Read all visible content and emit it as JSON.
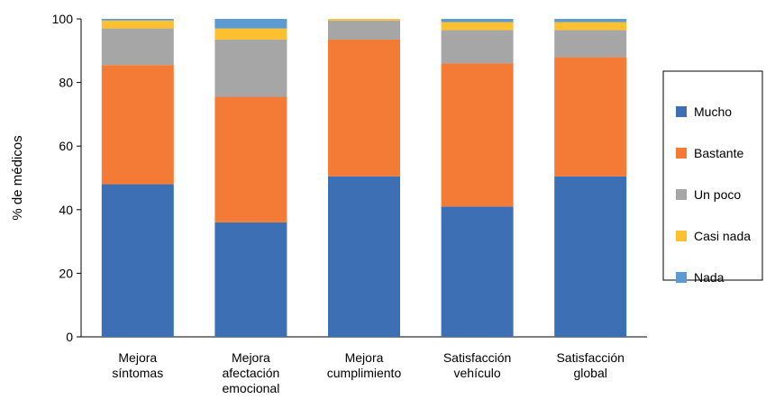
{
  "chart_data": {
    "type": "bar",
    "stacked": true,
    "ylabel": "% de médicos",
    "ylim": [
      0,
      100
    ],
    "yticks": [
      0,
      20,
      40,
      60,
      80,
      100
    ],
    "legend_position": "right",
    "categories": [
      [
        "Mejora",
        "síntomas"
      ],
      [
        "Mejora",
        "afectación",
        "emocional"
      ],
      [
        "Mejora",
        "cumplimiento"
      ],
      [
        "Satisfacción",
        "vehículo"
      ],
      [
        "Satisfacción",
        "global"
      ]
    ],
    "series": [
      {
        "name": "Mucho",
        "color": "#3D6FB4",
        "values": [
          48.0,
          36.0,
          50.5,
          41.0,
          50.5
        ]
      },
      {
        "name": "Bastante",
        "color": "#F47B35",
        "values": [
          37.5,
          39.5,
          43.0,
          45.0,
          37.5
        ]
      },
      {
        "name": "Un poco",
        "color": "#A6A6A6",
        "values": [
          11.5,
          18.0,
          6.0,
          10.5,
          8.5
        ]
      },
      {
        "name": "Casi nada",
        "color": "#FDC02F",
        "values": [
          2.5,
          3.5,
          0.5,
          2.5,
          2.5
        ]
      },
      {
        "name": "Nada",
        "color": "#5C9BD1",
        "values": [
          0.5,
          3.0,
          0.0,
          1.0,
          1.0
        ]
      }
    ]
  }
}
